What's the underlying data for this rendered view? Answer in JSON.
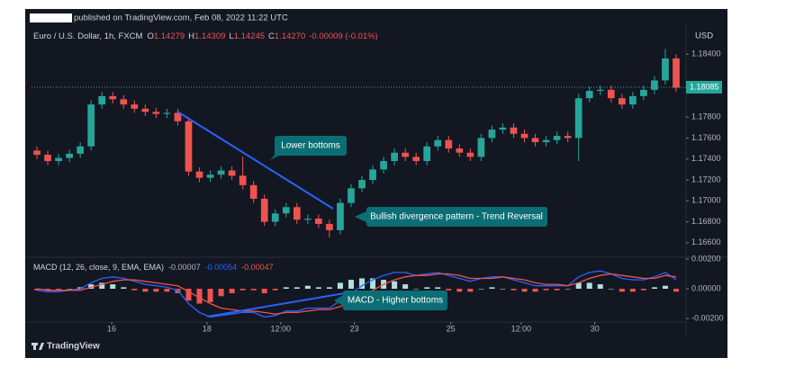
{
  "header": {
    "published": "published on TradingView.com, Feb 08, 2022 11:22 UTC"
  },
  "chart_data": [
    {
      "type": "candlestick",
      "symbol": "Euro / U.S. Dollar, 1h, FXCM",
      "open_label": "O",
      "open": 1.14279,
      "high_label": "H",
      "high": 1.14309,
      "low_label": "L",
      "low": 1.14245,
      "close_label": "C",
      "close": {
        "value": 1.1427,
        "label": "1.14270"
      },
      "change": "-0.00009 (-0.01%)",
      "currency": "USD",
      "up_color": "#26a69a",
      "down_color": "#ef5350",
      "xlim": [
        0,
        60
      ],
      "xticks": [
        {
          "value": 7.4,
          "label": "16"
        },
        {
          "value": 16.2,
          "label": "18"
        },
        {
          "value": 23.0,
          "label": "12:00"
        },
        {
          "value": 29.8,
          "label": "23"
        },
        {
          "value": 38.7,
          "label": "25"
        },
        {
          "value": 45.2,
          "label": "12:00"
        },
        {
          "value": 52.0,
          "label": "30"
        }
      ],
      "ylim": [
        1.1647,
        1.1866
      ],
      "yticks": [
        {
          "value": 1.184,
          "label": "1.18400"
        },
        {
          "value": 1.178,
          "label": "1.17800"
        },
        {
          "value": 1.176,
          "label": "1.17600"
        },
        {
          "value": 1.174,
          "label": "1.17400"
        },
        {
          "value": 1.172,
          "label": "1.17200"
        },
        {
          "value": 1.17,
          "label": "1.17000"
        },
        {
          "value": 1.168,
          "label": "1.16800"
        },
        {
          "value": 1.166,
          "label": "1.16600"
        }
      ],
      "last_price": {
        "value": 1.18085,
        "label": "1.18085"
      },
      "candles": {
        "open": [
          1.1748,
          1.1744,
          1.1738,
          1.1741,
          1.1745,
          1.1752,
          1.1792,
          1.18,
          1.1797,
          1.1792,
          1.1788,
          1.1785,
          1.1783,
          1.1784,
          1.1776,
          1.1728,
          1.1722,
          1.1725,
          1.1729,
          1.1724,
          1.1715,
          1.1702,
          1.168,
          1.1688,
          1.1694,
          1.1682,
          1.1683,
          1.1678,
          1.1672,
          1.1698,
          1.1712,
          1.172,
          1.173,
          1.1738,
          1.1746,
          1.1742,
          1.1738,
          1.1752,
          1.1758,
          1.175,
          1.1746,
          1.1742,
          1.176,
          1.1768,
          1.177,
          1.1764,
          1.176,
          1.1756,
          1.1758,
          1.1762,
          1.176,
          1.1798,
          1.1805,
          1.1806,
          1.1798,
          1.1792,
          1.18,
          1.1806,
          1.1815,
          1.1836
        ],
        "high": [
          1.1752,
          1.1748,
          1.1745,
          1.1749,
          1.1756,
          1.1796,
          1.1804,
          1.1804,
          1.1801,
          1.1796,
          1.1792,
          1.1789,
          1.1788,
          1.1788,
          1.178,
          1.1732,
          1.1729,
          1.1733,
          1.1733,
          1.1742,
          1.1719,
          1.1706,
          1.1692,
          1.1698,
          1.1698,
          1.1687,
          1.1687,
          1.1682,
          1.1702,
          1.1716,
          1.1724,
          1.1734,
          1.1742,
          1.175,
          1.175,
          1.1746,
          1.1756,
          1.1762,
          1.1762,
          1.1754,
          1.175,
          1.1764,
          1.1772,
          1.1774,
          1.1774,
          1.1768,
          1.1764,
          1.1762,
          1.1766,
          1.1766,
          1.1802,
          1.1809,
          1.181,
          1.181,
          1.1802,
          1.1804,
          1.181,
          1.1819,
          1.1845,
          1.184
        ],
        "low": [
          1.174,
          1.1734,
          1.1734,
          1.1737,
          1.1741,
          1.1748,
          1.1788,
          1.1793,
          1.1788,
          1.1784,
          1.1781,
          1.1779,
          1.1779,
          1.1772,
          1.1724,
          1.1718,
          1.1718,
          1.1721,
          1.172,
          1.1711,
          1.1698,
          1.1676,
          1.1676,
          1.1684,
          1.1678,
          1.1678,
          1.1674,
          1.1665,
          1.1668,
          1.1694,
          1.1708,
          1.1716,
          1.1726,
          1.1734,
          1.1738,
          1.1734,
          1.1734,
          1.1748,
          1.1746,
          1.1742,
          1.1738,
          1.1738,
          1.1756,
          1.1764,
          1.176,
          1.1756,
          1.1752,
          1.1752,
          1.1754,
          1.1756,
          1.1738,
          1.1794,
          1.1801,
          1.1794,
          1.1788,
          1.1788,
          1.1796,
          1.1802,
          1.1811,
          1.1804
        ],
        "close": [
          1.1744,
          1.1738,
          1.1741,
          1.1745,
          1.1752,
          1.1792,
          1.18,
          1.1797,
          1.1792,
          1.1788,
          1.1785,
          1.1783,
          1.1784,
          1.1776,
          1.1728,
          1.1722,
          1.1725,
          1.1729,
          1.1724,
          1.1715,
          1.1702,
          1.168,
          1.1688,
          1.1694,
          1.1682,
          1.1683,
          1.1678,
          1.1672,
          1.1698,
          1.1712,
          1.172,
          1.173,
          1.1738,
          1.1746,
          1.1742,
          1.1738,
          1.1752,
          1.1758,
          1.175,
          1.1746,
          1.1742,
          1.176,
          1.1768,
          1.177,
          1.1764,
          1.176,
          1.1756,
          1.1758,
          1.1762,
          1.176,
          1.1798,
          1.1805,
          1.1806,
          1.1798,
          1.1792,
          1.18,
          1.1806,
          1.1815,
          1.1836,
          1.1808
        ]
      },
      "annotations": [
        "Lower bottoms",
        "Bullish divergence pattern - Trend Reversal"
      ]
    },
    {
      "type": "macd",
      "title": "MACD (12, 26, close, 9, EMA, EMA)",
      "legend_values": [
        -7e-05,
        -0.00054,
        -0.00047
      ],
      "legend_colors": [
        "#b2b5be",
        "#2962ff",
        "#ef5350"
      ],
      "ylim": [
        -0.00224,
        0.00206
      ],
      "yticks": [
        {
          "value": 0.002,
          "label": "0.00200"
        },
        {
          "value": 0,
          "label": "0.00000"
        },
        {
          "value": -0.002,
          "label": "-0.00200"
        }
      ],
      "histogram": {
        "up_color": "#b2dfdb",
        "down_color": "#ef5350",
        "values": [
          -0.0001,
          -0.0001,
          -0.0001,
          0.0,
          0.0001,
          0.0003,
          0.0004,
          0.0003,
          0.0001,
          -0.0001,
          -0.0002,
          -0.0002,
          -0.0002,
          -0.0003,
          -0.0008,
          -0.001,
          -0.0009,
          -0.0005,
          -0.0003,
          -0.0001,
          -0.0001,
          -0.0003,
          -0.0001,
          0.0001,
          0.0001,
          0.0002,
          0.0001,
          0.0001,
          0.0004,
          0.0006,
          0.0007,
          0.0007,
          0.0006,
          0.0005,
          0.0003,
          0.0,
          0.0001,
          0.0001,
          -0.0001,
          -0.0002,
          -0.0002,
          0.0,
          0.0001,
          0.0,
          -0.0001,
          -0.0002,
          -0.0002,
          -0.0001,
          -0.0001,
          0.0,
          0.0004,
          0.0004,
          0.0003,
          0.0,
          -0.0002,
          -0.0002,
          -0.0001,
          0.0001,
          0.0002,
          -0.0002
        ]
      },
      "series": [
        {
          "color": "#2962ff",
          "values": [
            -0.0001,
            -0.0002,
            -0.0002,
            -0.0001,
            0.0,
            0.0004,
            0.0007,
            0.0008,
            0.0007,
            0.0005,
            0.0003,
            0.0002,
            0.0001,
            -0.0001,
            -0.001,
            -0.0016,
            -0.0019,
            -0.0018,
            -0.0017,
            -0.0016,
            -0.0016,
            -0.0019,
            -0.0018,
            -0.0015,
            -0.0015,
            -0.0013,
            -0.0013,
            -0.0013,
            -0.0008,
            -0.0003,
            0.0002,
            0.0006,
            0.0009,
            0.0011,
            0.0011,
            0.0009,
            0.001,
            0.0011,
            0.0009,
            0.0007,
            0.0005,
            0.0007,
            0.0008,
            0.0008,
            0.0006,
            0.0004,
            0.0002,
            0.0002,
            0.0002,
            0.0002,
            0.0008,
            0.0011,
            0.0012,
            0.001,
            0.0007,
            0.0006,
            0.0006,
            0.0008,
            0.0011,
            0.0006
          ]
        },
        {
          "color": "#ef5350",
          "values": [
            0.0,
            -0.0001,
            -0.0001,
            -0.0001,
            -0.0001,
            0.0001,
            0.0003,
            0.0005,
            0.0006,
            0.0006,
            0.0005,
            0.0004,
            0.0003,
            0.0002,
            -0.0002,
            -0.0006,
            -0.001,
            -0.0013,
            -0.0014,
            -0.0015,
            -0.0015,
            -0.0016,
            -0.0017,
            -0.0016,
            -0.0016,
            -0.0015,
            -0.0014,
            -0.0014,
            -0.0012,
            -0.0009,
            -0.0005,
            -0.0001,
            0.0003,
            0.0006,
            0.0008,
            0.0009,
            0.0009,
            0.001,
            0.001,
            0.0009,
            0.0007,
            0.0007,
            0.0007,
            0.0008,
            0.0007,
            0.0006,
            0.0004,
            0.0003,
            0.0003,
            0.0002,
            0.0004,
            0.0007,
            0.0009,
            0.001,
            0.0009,
            0.0008,
            0.0007,
            0.0007,
            0.0009,
            0.0008
          ]
        }
      ],
      "annotation": "MACD - Higher bottoms"
    }
  ],
  "footer": {
    "brand": "TradingView"
  }
}
